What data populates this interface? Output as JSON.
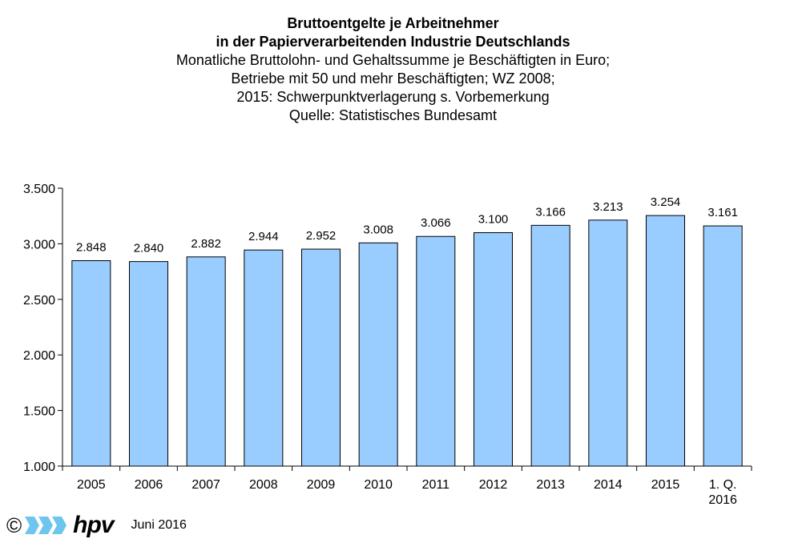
{
  "chart_data": {
    "type": "bar",
    "title": "Bruttoentgelte je Arbeitnehmer in der Papierverarbeitenden Industrie Deutschlands",
    "title_lines": [
      "Bruttoentgelte je Arbeitnehmer",
      "in der Papierverarbeitenden Industrie Deutschlands"
    ],
    "subtitle_lines": [
      "Monatliche Bruttolohn- und Gehaltssumme je Beschäftigten in Euro;",
      "Betriebe mit 50 und mehr Beschäftigten; WZ 2008;",
      "2015: Schwerpunktverlagerung s. Vorbemerkung",
      "Quelle: Statistisches Bundesamt"
    ],
    "categories": [
      "2005",
      "2006",
      "2007",
      "2008",
      "2009",
      "2010",
      "2011",
      "2012",
      "2013",
      "2014",
      "2015",
      "1. Q. 2016"
    ],
    "values": [
      2848,
      2840,
      2882,
      2944,
      2952,
      3008,
      3066,
      3100,
      3166,
      3213,
      3254,
      3161
    ],
    "value_labels": [
      "2.848",
      "2.840",
      "2.882",
      "2.944",
      "2.952",
      "3.008",
      "3.066",
      "3.100",
      "3.166",
      "3.213",
      "3.254",
      "3.161"
    ],
    "ylim": [
      1000,
      3500
    ],
    "yticks": [
      1000,
      1500,
      2000,
      2500,
      3000,
      3500
    ],
    "ytick_labels": [
      "1.000",
      "1.500",
      "2.000",
      "2.500",
      "3.000",
      "3.500"
    ],
    "xlabel": "",
    "ylabel": "",
    "grid": false,
    "legend": "none",
    "bar_color": "#99ccff",
    "bar_edge_color": "#000000"
  },
  "footer": {
    "copyright_symbol": "©",
    "logo_text": "hpv",
    "logo_color": "#6ec6ee",
    "date": "Juni 2016"
  }
}
